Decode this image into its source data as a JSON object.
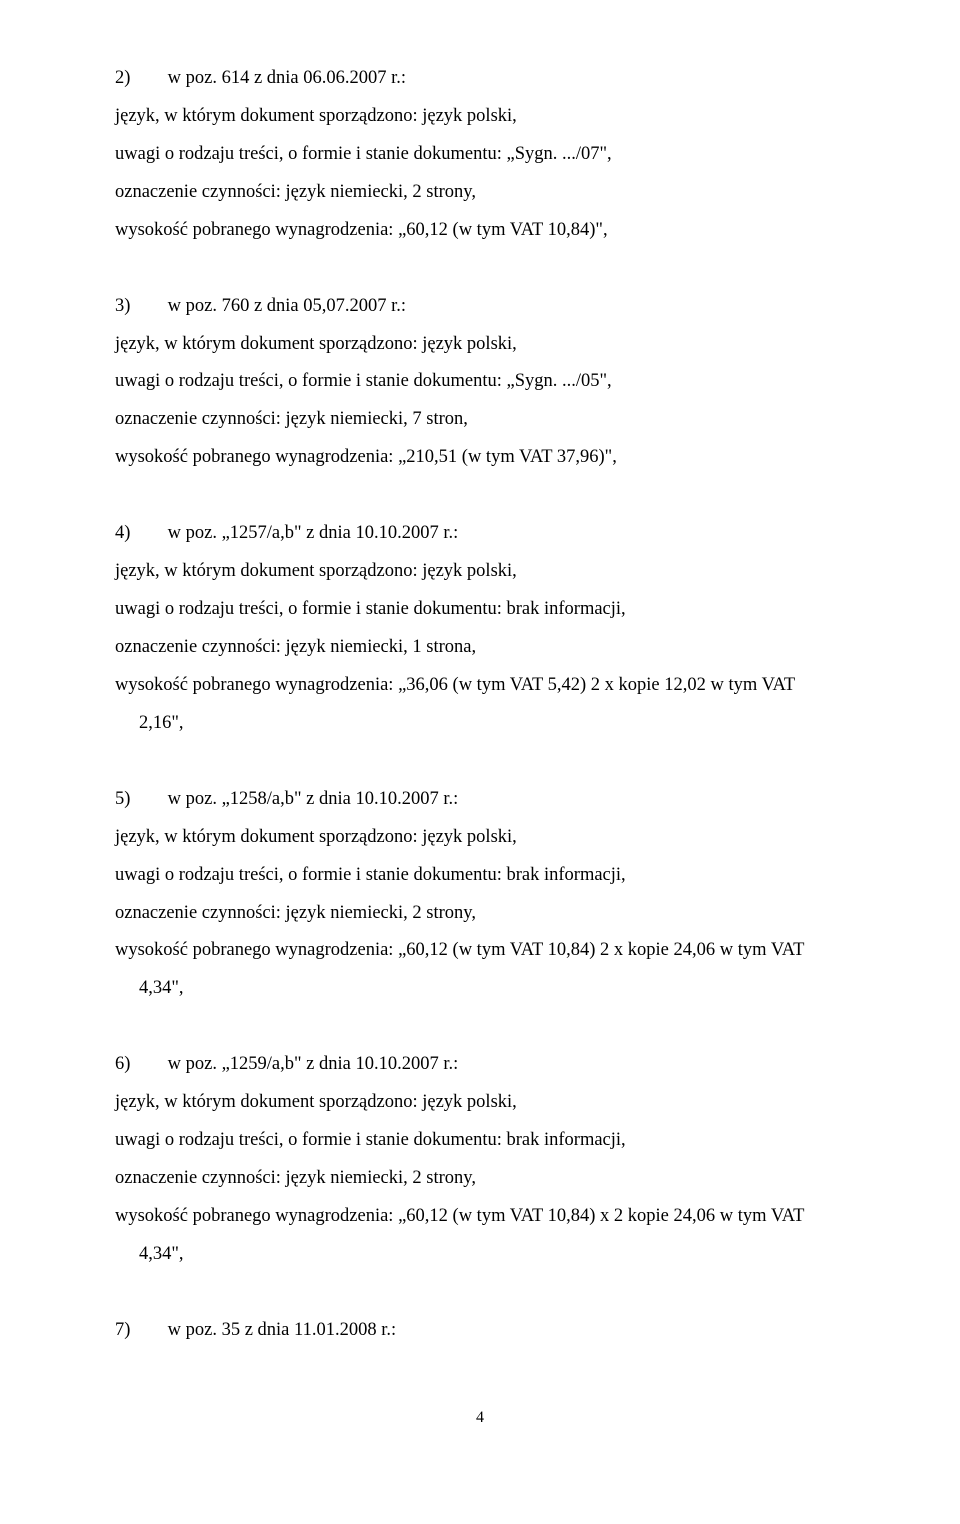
{
  "entries": [
    {
      "num": "2)",
      "head_rest": "w poz. 614 z dnia 06.06.2007 r.:",
      "lines": [
        "język, w którym dokument sporządzono: język polski,",
        "uwagi o rodzaju treści, o formie i stanie dokumentu: „Sygn. .../07\",",
        "oznaczenie czynności: język niemiecki, 2 strony,",
        "wysokość pobranego wynagrodzenia: „60,12 (w tym VAT 10,84)\","
      ],
      "tail_indent": null
    },
    {
      "num": "3)",
      "head_rest": "w poz. 760 z dnia 05,07.2007 r.:",
      "lines": [
        "język, w którym dokument sporządzono: język polski,",
        "uwagi o rodzaju treści, o formie i stanie dokumentu: „Sygn. .../05\",",
        "oznaczenie czynności: język niemiecki, 7 stron,",
        "wysokość pobranego wynagrodzenia: „210,51 (w tym VAT 37,96)\","
      ],
      "tail_indent": null
    },
    {
      "num": "4)",
      "head_rest": "w poz. „1257/a,b\" z dnia 10.10.2007 r.:",
      "lines": [
        "język, w którym dokument sporządzono: język polski,",
        "uwagi o rodzaju treści, o formie i stanie dokumentu: brak informacji,",
        "oznaczenie czynności: język niemiecki, 1 strona,",
        "wysokość pobranego wynagrodzenia: „36,06 (w tym VAT 5,42) 2 x kopie 12,02 w tym VAT"
      ],
      "tail_indent": "2,16\","
    },
    {
      "num": "5)",
      "head_rest": "w poz. „1258/a,b\" z dnia 10.10.2007 r.:",
      "lines": [
        "język, w którym dokument sporządzono: język polski,",
        "uwagi o rodzaju treści, o formie i stanie dokumentu: brak informacji,",
        "oznaczenie czynności: język niemiecki, 2 strony,",
        "wysokość pobranego wynagrodzenia: „60,12 (w tym VAT 10,84) 2 x kopie 24,06 w tym VAT"
      ],
      "tail_indent": "4,34\","
    },
    {
      "num": "6)",
      "head_rest": "w poz. „1259/a,b\" z dnia 10.10.2007 r.:",
      "lines": [
        "język, w którym dokument sporządzono: język polski,",
        "uwagi o rodzaju treści, o formie i stanie dokumentu: brak informacji,",
        "oznaczenie czynności: język niemiecki, 2 strony,",
        "wysokość pobranego wynagrodzenia: „60,12 (w tym VAT 10,84) x 2 kopie 24,06 w tym VAT"
      ],
      "tail_indent": "4,34\","
    },
    {
      "num": "7)",
      "head_rest": "w poz. 35 z dnia 11.01.2008 r.:",
      "lines": [],
      "tail_indent": null
    }
  ],
  "page_number": "4"
}
